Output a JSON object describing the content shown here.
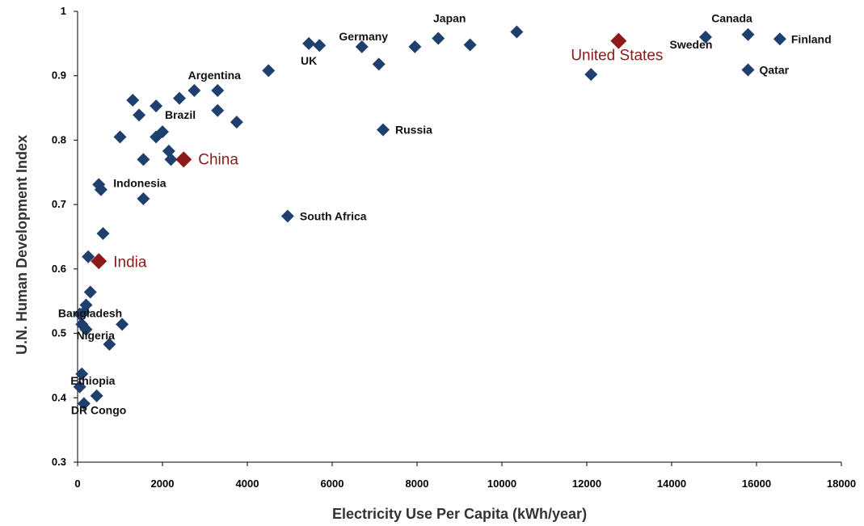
{
  "chart_data": {
    "type": "scatter",
    "xlabel": "Electricity Use Per Capita (kWh/year)",
    "ylabel": "U.N. Human Development Index",
    "xlim": [
      0,
      18000
    ],
    "ylim": [
      0.3,
      1.0
    ],
    "x_ticks": [
      "0",
      "2000",
      "4000",
      "6000",
      "8000",
      "10000",
      "12000",
      "14000",
      "16000",
      "18000"
    ],
    "y_ticks": [
      "0.3",
      "0.4",
      "0.5",
      "0.6",
      "0.7",
      "0.8",
      "0.9",
      "1"
    ],
    "y_tick_values": [
      0.3,
      0.4,
      0.5,
      0.6,
      0.7,
      0.8,
      0.9,
      1.0
    ],
    "grid": false,
    "colors": {
      "normal": "#1f3f6e",
      "highlight": "#8b1a1a"
    },
    "points": [
      {
        "x": 5450,
        "y": 0.95,
        "label": "UK"
      },
      {
        "x": 5700,
        "y": 0.947
      },
      {
        "x": 6700,
        "y": 0.945,
        "label": "Germany"
      },
      {
        "x": 7100,
        "y": 0.918
      },
      {
        "x": 7950,
        "y": 0.945
      },
      {
        "x": 8500,
        "y": 0.958,
        "label": "Japan"
      },
      {
        "x": 9250,
        "y": 0.948
      },
      {
        "x": 10350,
        "y": 0.968
      },
      {
        "x": 12100,
        "y": 0.902
      },
      {
        "x": 12750,
        "y": 0.954,
        "label": "United States",
        "highlight": true
      },
      {
        "x": 14800,
        "y": 0.96,
        "label": "Sweden"
      },
      {
        "x": 15800,
        "y": 0.964,
        "label": "Canada"
      },
      {
        "x": 15800,
        "y": 0.909,
        "label": "Qatar"
      },
      {
        "x": 16550,
        "y": 0.957,
        "label": "Finland"
      },
      {
        "x": 4500,
        "y": 0.908
      },
      {
        "x": 3300,
        "y": 0.877,
        "label": "Argentina"
      },
      {
        "x": 2750,
        "y": 0.877
      },
      {
        "x": 2400,
        "y": 0.865
      },
      {
        "x": 3300,
        "y": 0.846
      },
      {
        "x": 3750,
        "y": 0.828
      },
      {
        "x": 7200,
        "y": 0.816,
        "label": "Russia"
      },
      {
        "x": 1300,
        "y": 0.862
      },
      {
        "x": 1850,
        "y": 0.853
      },
      {
        "x": 1450,
        "y": 0.839
      },
      {
        "x": 2000,
        "y": 0.813,
        "label": "Brazil"
      },
      {
        "x": 1850,
        "y": 0.805
      },
      {
        "x": 1000,
        "y": 0.805
      },
      {
        "x": 2150,
        "y": 0.783
      },
      {
        "x": 2200,
        "y": 0.77
      },
      {
        "x": 1550,
        "y": 0.77
      },
      {
        "x": 2500,
        "y": 0.77,
        "label": "China",
        "highlight": true
      },
      {
        "x": 500,
        "y": 0.731,
        "label": "Indonesia"
      },
      {
        "x": 550,
        "y": 0.723
      },
      {
        "x": 1550,
        "y": 0.709
      },
      {
        "x": 4950,
        "y": 0.682,
        "label": "South Africa"
      },
      {
        "x": 600,
        "y": 0.655
      },
      {
        "x": 250,
        "y": 0.619
      },
      {
        "x": 500,
        "y": 0.612,
        "label": "India",
        "highlight": true
      },
      {
        "x": 300,
        "y": 0.564
      },
      {
        "x": 200,
        "y": 0.544
      },
      {
        "x": 150,
        "y": 0.533,
        "label": "Bangladesh"
      },
      {
        "x": 50,
        "y": 0.53
      },
      {
        "x": 100,
        "y": 0.514
      },
      {
        "x": 1050,
        "y": 0.514
      },
      {
        "x": 200,
        "y": 0.506,
        "label": "Nigeria"
      },
      {
        "x": 750,
        "y": 0.483
      },
      {
        "x": 100,
        "y": 0.437,
        "label": "Ethiopia"
      },
      {
        "x": 50,
        "y": 0.417
      },
      {
        "x": 450,
        "y": 0.403
      },
      {
        "x": 150,
        "y": 0.391,
        "label": "DR Congo"
      }
    ]
  }
}
